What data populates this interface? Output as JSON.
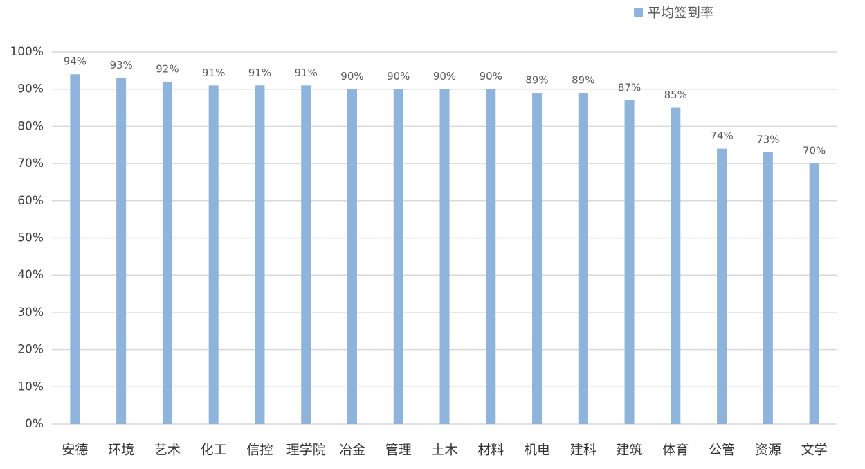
{
  "chart_data": {
    "type": "bar",
    "legend": "平均签到率",
    "legend_position": "top-right",
    "color": "#8eb4dc",
    "categories": [
      "安德",
      "环境",
      "艺术",
      "化工",
      "信控",
      "理学院",
      "冶金",
      "管理",
      "土木",
      "材料",
      "机电",
      "建科",
      "建筑",
      "体育",
      "公管",
      "资源",
      "文学"
    ],
    "values": [
      94,
      93,
      92,
      91,
      91,
      91,
      90,
      90,
      90,
      90,
      89,
      89,
      87,
      85,
      74,
      73,
      70
    ],
    "value_labels": [
      "94%",
      "93%",
      "92%",
      "91%",
      "91%",
      "91%",
      "90%",
      "90%",
      "90%",
      "90%",
      "89%",
      "89%",
      "87%",
      "85%",
      "74%",
      "73%",
      "70%"
    ],
    "ylim": [
      0,
      100
    ],
    "yticks": [
      {
        "value": 0,
        "label": "0%"
      },
      {
        "value": 10,
        "label": "10%"
      },
      {
        "value": 20,
        "label": "20%"
      },
      {
        "value": 30,
        "label": "30%"
      },
      {
        "value": 40,
        "label": "40%"
      },
      {
        "value": 50,
        "label": "50%"
      },
      {
        "value": 60,
        "label": "60%"
      },
      {
        "value": 70,
        "label": "70%"
      },
      {
        "value": 80,
        "label": "80%"
      },
      {
        "value": 90,
        "label": "90%"
      },
      {
        "value": 100,
        "label": "100%"
      }
    ],
    "grid": true
  }
}
